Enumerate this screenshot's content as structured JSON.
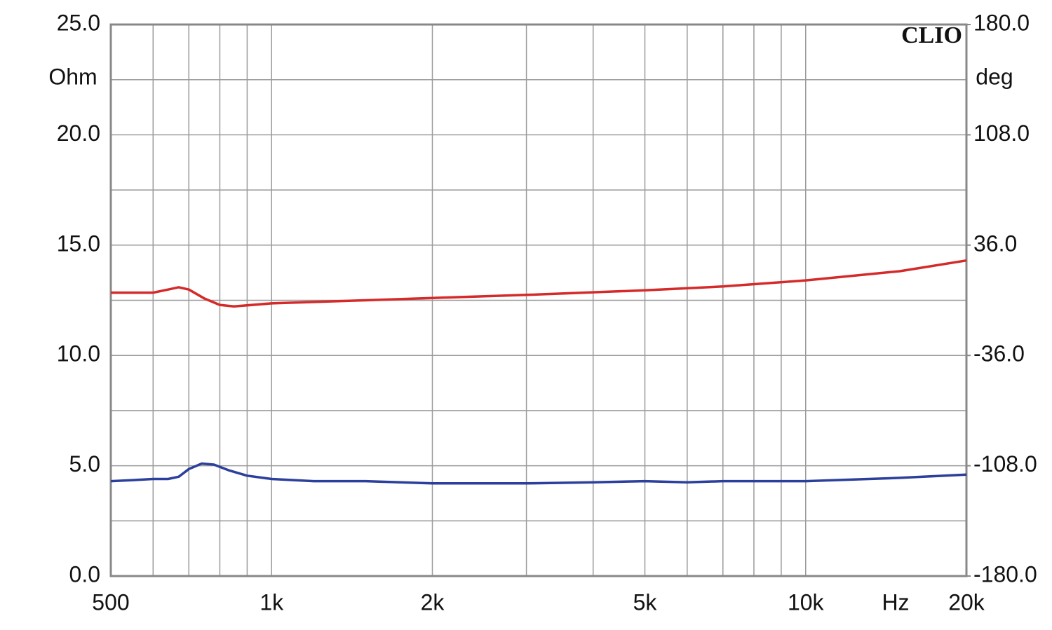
{
  "chart_data": {
    "type": "line",
    "watermark": "CLIO",
    "xlabel": "Hz",
    "ylabel": "Ohm",
    "y2label": "deg",
    "xscale": "log",
    "xlim": [
      500,
      20000
    ],
    "xticks": [
      500,
      {
        "value": 1000,
        "label": "1k"
      },
      {
        "value": 2000,
        "label": "2k"
      },
      {
        "value": 5000,
        "label": "5k"
      },
      {
        "value": 10000,
        "label": "10k"
      },
      {
        "value": 20000,
        "label": "20k"
      }
    ],
    "xminor": [
      600,
      700,
      800,
      900,
      3000,
      4000,
      6000,
      7000,
      8000,
      9000
    ],
    "ylim": [
      0,
      25
    ],
    "yticks": [
      {
        "value": 0,
        "label": "0.0"
      },
      {
        "value": 5,
        "label": "5.0"
      },
      {
        "value": 10,
        "label": "10.0"
      },
      {
        "value": 15,
        "label": "15.0"
      },
      {
        "value": 20,
        "label": "20.0"
      },
      {
        "value": 25,
        "label": "25.0"
      }
    ],
    "yminor": [
      2.5,
      7.5,
      12.5,
      17.5,
      22.5
    ],
    "y2lim": [
      -180,
      180
    ],
    "y2ticks": [
      {
        "value": -180,
        "label": "-180.0"
      },
      {
        "value": -108,
        "label": "-108.0"
      },
      {
        "value": -36,
        "label": "-36.0"
      },
      {
        "value": 36,
        "label": "36.0"
      },
      {
        "value": 108,
        "label": "108.0"
      },
      {
        "value": 180,
        "label": "180.0"
      }
    ],
    "grid": true,
    "series": [
      {
        "color": "#2b3f9c",
        "axis": "y",
        "x": [
          500,
          550,
          600,
          640,
          670,
          700,
          740,
          780,
          830,
          900,
          1000,
          1200,
          1500,
          2000,
          3000,
          4000,
          5000,
          6000,
          7000,
          10000,
          15000,
          20000
        ],
        "values": [
          4.3,
          4.35,
          4.4,
          4.4,
          4.5,
          4.85,
          5.1,
          5.05,
          4.8,
          4.55,
          4.4,
          4.3,
          4.3,
          4.2,
          4.2,
          4.25,
          4.3,
          4.25,
          4.3,
          4.3,
          4.45,
          4.6
        ]
      },
      {
        "color": "#d42a2a",
        "axis": "y2",
        "x": [
          500,
          600,
          640,
          670,
          700,
          750,
          800,
          850,
          1000,
          1500,
          2000,
          3000,
          5000,
          7000,
          10000,
          15000,
          20000
        ],
        "values": [
          5,
          5,
          7,
          8.5,
          7,
          1,
          -3,
          -4,
          -2,
          0,
          1.5,
          3.5,
          6.5,
          9,
          13,
          19,
          26
        ]
      }
    ]
  }
}
